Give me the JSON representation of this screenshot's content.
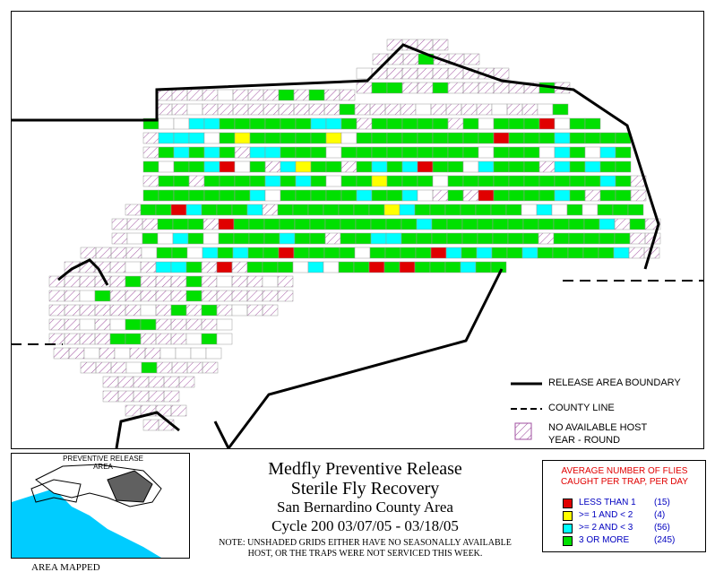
{
  "map": {
    "legend": {
      "boundary_label": "RELEASE AREA BOUNDARY",
      "county_label": "COUNTY LINE",
      "nohost_label_1": "NO AVAILABLE HOST",
      "nohost_label_2": "YEAR - ROUND"
    }
  },
  "inset": {
    "label_1": "PREVENTIVE RELEASE",
    "label_2": "AREA",
    "caption": "AREA MAPPED"
  },
  "title": {
    "line1": "Medfly Preventive Release",
    "line2": "Sterile Fly Recovery",
    "line3": "San Bernardino County Area",
    "line4": "Cycle 200     03/07/05 - 03/18/05",
    "note1": "NOTE: UNSHADED GRIDS EITHER HAVE NO SEASONALLY AVAILABLE",
    "note2": "HOST, OR THE TRAPS WERE NOT SERVICED THIS WEEK."
  },
  "catch_legend": {
    "heading_1": "AVERAGE NUMBER OF FLIES",
    "heading_2": "CAUGHT PER TRAP, PER DAY",
    "items": [
      {
        "label": "LESS THAN 1",
        "count": "(15)",
        "color": "#e00000"
      },
      {
        "label": ">= 1 AND < 2",
        "count": "(4)",
        "color": "#ffff00"
      },
      {
        "label": ">= 2 AND < 3",
        "count": "(56)",
        "color": "#00ffff"
      },
      {
        "label": "3 OR MORE",
        "count": "(245)",
        "color": "#00e000"
      }
    ]
  },
  "colors": {
    "red": "#e00000",
    "yellow": "#ffff00",
    "cyan": "#00ffff",
    "green": "#00e000",
    "hatch": "#a050a0",
    "ocean": "#00ccff",
    "inset_area": "#606060"
  }
}
